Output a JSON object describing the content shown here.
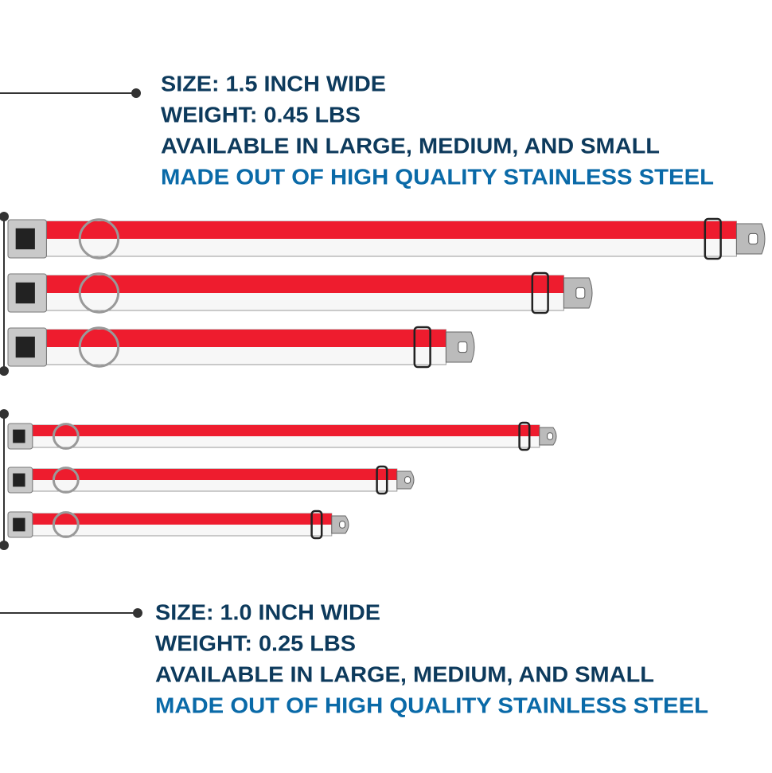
{
  "groups": [
    {
      "lines": [
        "SIZE: 1.5 INCH WIDE",
        "WEIGHT: 0.45 LBS",
        "AVAILABLE IN LARGE, MEDIUM, AND SMALL",
        "MADE OUT OF HIGH QUALITY STAINLESS STEEL"
      ]
    },
    {
      "lines": [
        "SIZE: 1.0 INCH WIDE",
        "WEIGHT: 0.25 LBS",
        "AVAILABLE IN LARGE, MEDIUM, AND SMALL",
        "MADE OUT OF HIGH QUALITY STAINLESS STEEL"
      ]
    }
  ]
}
